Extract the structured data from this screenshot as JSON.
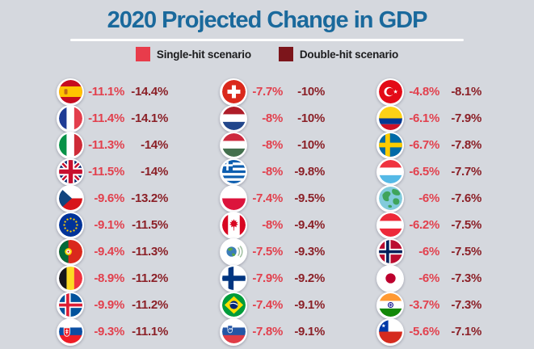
{
  "title": "2020 Projected Change in GDP",
  "legend": {
    "single": {
      "label": "Single-hit scenario",
      "color": "#E83C4B"
    },
    "double": {
      "label": "Double-hit scenario",
      "color": "#7C151B"
    }
  },
  "colors": {
    "background": "#D5D8DE",
    "title_text": "#1A699C",
    "single_value": "#E2404D",
    "double_value": "#8B2027"
  },
  "chart_data": {
    "type": "table",
    "title": "2020 Projected Change in GDP",
    "unit": "percent",
    "series_labels": [
      "Single-hit scenario",
      "Double-hit scenario"
    ],
    "columns": [
      [
        {
          "country": "Spain",
          "icon": "flag-spain",
          "single": -11.1,
          "double": -14.4
        },
        {
          "country": "France",
          "icon": "flag-france",
          "single": -11.4,
          "double": -14.1
        },
        {
          "country": "Italy",
          "icon": "flag-italy",
          "single": -11.3,
          "double": -14
        },
        {
          "country": "United Kingdom",
          "icon": "flag-uk",
          "single": -11.5,
          "double": -14
        },
        {
          "country": "Czech Republic",
          "icon": "flag-czech",
          "single": -9.6,
          "double": -13.2
        },
        {
          "country": "European Union",
          "icon": "flag-eu",
          "single": -9.1,
          "double": -11.5
        },
        {
          "country": "Portugal",
          "icon": "flag-portugal",
          "single": -9.4,
          "double": -11.3
        },
        {
          "country": "Belgium",
          "icon": "flag-belgium",
          "single": -8.9,
          "double": -11.2
        },
        {
          "country": "Iceland",
          "icon": "flag-iceland",
          "single": -9.9,
          "double": -11.2
        },
        {
          "country": "Slovakia",
          "icon": "flag-slovakia",
          "single": -9.3,
          "double": -11.1
        }
      ],
      [
        {
          "country": "Switzerland",
          "icon": "flag-switzerland",
          "single": -7.7,
          "double": -10
        },
        {
          "country": "Netherlands",
          "icon": "flag-netherlands",
          "single": -8,
          "double": -10
        },
        {
          "country": "Hungary",
          "icon": "flag-hungary",
          "single": -8,
          "double": -10
        },
        {
          "country": "Greece",
          "icon": "flag-greece",
          "single": -8,
          "double": -9.8
        },
        {
          "country": "Poland",
          "icon": "flag-poland",
          "single": -7.4,
          "double": -9.5
        },
        {
          "country": "Canada",
          "icon": "flag-canada",
          "single": -8,
          "double": -9.4
        },
        {
          "country": "OECD",
          "icon": "oecd-logo",
          "single": -7.5,
          "double": -9.3
        },
        {
          "country": "Finland",
          "icon": "flag-finland",
          "single": -7.9,
          "double": -9.2
        },
        {
          "country": "Brazil",
          "icon": "flag-brazil",
          "single": -7.4,
          "double": -9.1
        },
        {
          "country": "Slovenia",
          "icon": "flag-slovenia",
          "single": -7.8,
          "double": -9.1
        }
      ],
      [
        {
          "country": "Turkey",
          "icon": "flag-turkey",
          "single": -4.8,
          "double": -8.1
        },
        {
          "country": "Colombia",
          "icon": "flag-colombia",
          "single": -6.1,
          "double": -7.9
        },
        {
          "country": "Sweden",
          "icon": "flag-sweden",
          "single": -6.7,
          "double": -7.8
        },
        {
          "country": "Luxembourg",
          "icon": "flag-luxembourg",
          "single": -6.5,
          "double": -7.7
        },
        {
          "country": "World",
          "icon": "globe-world",
          "single": -6,
          "double": -7.6
        },
        {
          "country": "Austria",
          "icon": "flag-austria",
          "single": -6.2,
          "double": -7.5
        },
        {
          "country": "Norway",
          "icon": "flag-norway",
          "single": -6,
          "double": -7.5
        },
        {
          "country": "Japan",
          "icon": "flag-japan",
          "single": -6,
          "double": -7.3
        },
        {
          "country": "India",
          "icon": "flag-india",
          "single": -3.7,
          "double": -7.3
        },
        {
          "country": "Chile",
          "icon": "flag-chile",
          "single": -5.6,
          "double": -7.1
        }
      ]
    ]
  }
}
